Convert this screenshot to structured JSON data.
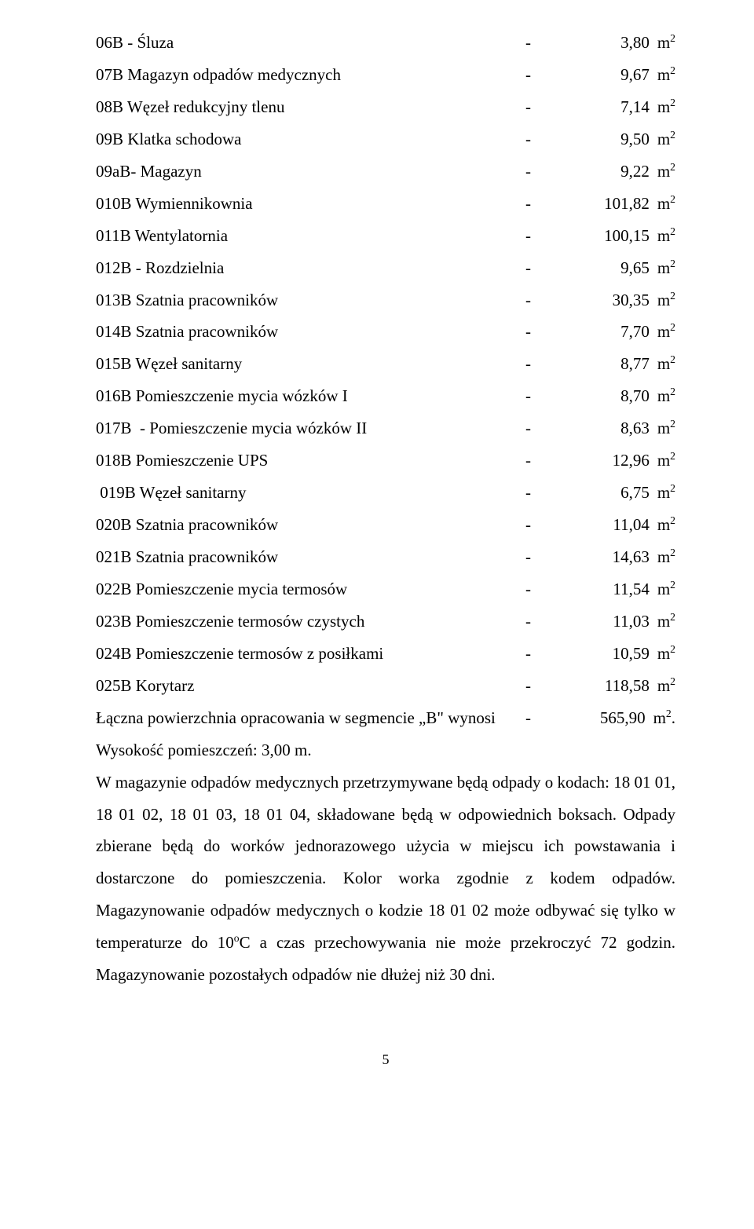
{
  "rows": [
    {
      "label": "06B - Śluza",
      "dash": "-",
      "value": "3,80",
      "unit": "m",
      "sup": "2"
    },
    {
      "label": "07B Magazyn odpadów medycznych",
      "dash": "-",
      "value": "9,67",
      "unit": "m",
      "sup": "2"
    },
    {
      "label": "08B Węzeł redukcyjny tlenu",
      "dash": "-",
      "value": "7,14",
      "unit": "m",
      "sup": "2"
    },
    {
      "label": "09B Klatka schodowa",
      "dash": "-",
      "value": "9,50",
      "unit": "m",
      "sup": "2"
    },
    {
      "label": "09aB- Magazyn",
      "dash": "-",
      "value": "9,22",
      "unit": "m",
      "sup": "2"
    },
    {
      "label": "010B Wymiennikownia",
      "dash": "-",
      "value": "101,82",
      "unit": "m",
      "sup": "2"
    },
    {
      "label": "011B Wentylatornia",
      "dash": "-",
      "value": "100,15",
      "unit": "m",
      "sup": "2"
    },
    {
      "label": "012B - Rozdzielnia",
      "dash": "-",
      "value": "9,65",
      "unit": "m",
      "sup": "2"
    },
    {
      "label": "013B Szatnia pracowników",
      "dash": "-",
      "value": "30,35",
      "unit": "m",
      "sup": "2"
    },
    {
      "label": "014B Szatnia pracowników",
      "dash": "-",
      "value": "7,70",
      "unit": "m",
      "sup": "2"
    },
    {
      "label": "015B Węzeł sanitarny",
      "dash": "-",
      "value": "8,77",
      "unit": "m",
      "sup": "2"
    },
    {
      "label": "016B Pomieszczenie mycia wózków I",
      "dash": "-",
      "value": "8,70",
      "unit": "m",
      "sup": "2"
    },
    {
      "label": "017B  - Pomieszczenie mycia wózków II",
      "dash": "-",
      "value": "8,63",
      "unit": "m",
      "sup": "2"
    },
    {
      "label": "018B Pomieszczenie UPS",
      "dash": "-",
      "value": "12,96",
      "unit": "m",
      "sup": "2"
    },
    {
      "label": " 019B Węzeł sanitarny",
      "dash": "-",
      "value": "6,75",
      "unit": "m",
      "sup": "2"
    },
    {
      "label": "020B Szatnia pracowników",
      "dash": "-",
      "value": "11,04",
      "unit": "m",
      "sup": "2"
    },
    {
      "label": "021B Szatnia pracowników",
      "dash": "-",
      "value": "14,63",
      "unit": "m",
      "sup": "2"
    },
    {
      "label": "022B Pomieszczenie mycia termosów",
      "dash": "-",
      "value": "11,54",
      "unit": "m",
      "sup": "2"
    },
    {
      "label": "023B Pomieszczenie termosów czystych",
      "dash": "-",
      "value": "11,03",
      "unit": "m",
      "sup": "2"
    },
    {
      "label": "024B Pomieszczenie termosów z posiłkami",
      "dash": "-",
      "value": "10,59",
      "unit": "m",
      "sup": "2"
    },
    {
      "label": "025B Korytarz",
      "dash": "-",
      "value": "118,58",
      "unit": "m",
      "sup": "2"
    }
  ],
  "summary": {
    "label": "Łączna powierzchnia opracowania w segmencie „B\" wynosi",
    "dash": "-",
    "value": "565,90",
    "unit": "m",
    "sup": "2",
    "dot": "."
  },
  "height_line": "Wysokość pomieszczeń: 3,00 m.",
  "paragraph_parts": {
    "p1a": "W magazynie odpadów medycznych przetrzymywane będą odpady  o kodach: 18 01 01, 18 01 02, 18 01 03, 18 01 04, składowane będą w odpowiednich boksach. Odpady zbierane będą do worków jednorazowego użycia w miejscu ich powstawania i dostarczone do pomieszczenia. Kolor worka zgodnie z kodem odpadów. Magazynowanie odpadów medycznych o kodzie 18 01 02 może odbywać się tylko w temperaturze do 10",
    "p1sup": "o",
    "p1b": "C a czas przechowywania nie może przekroczyć 72 godzin. Magazynowanie pozostałych odpadów nie dłużej niż 30 dni."
  },
  "page_number": "5"
}
